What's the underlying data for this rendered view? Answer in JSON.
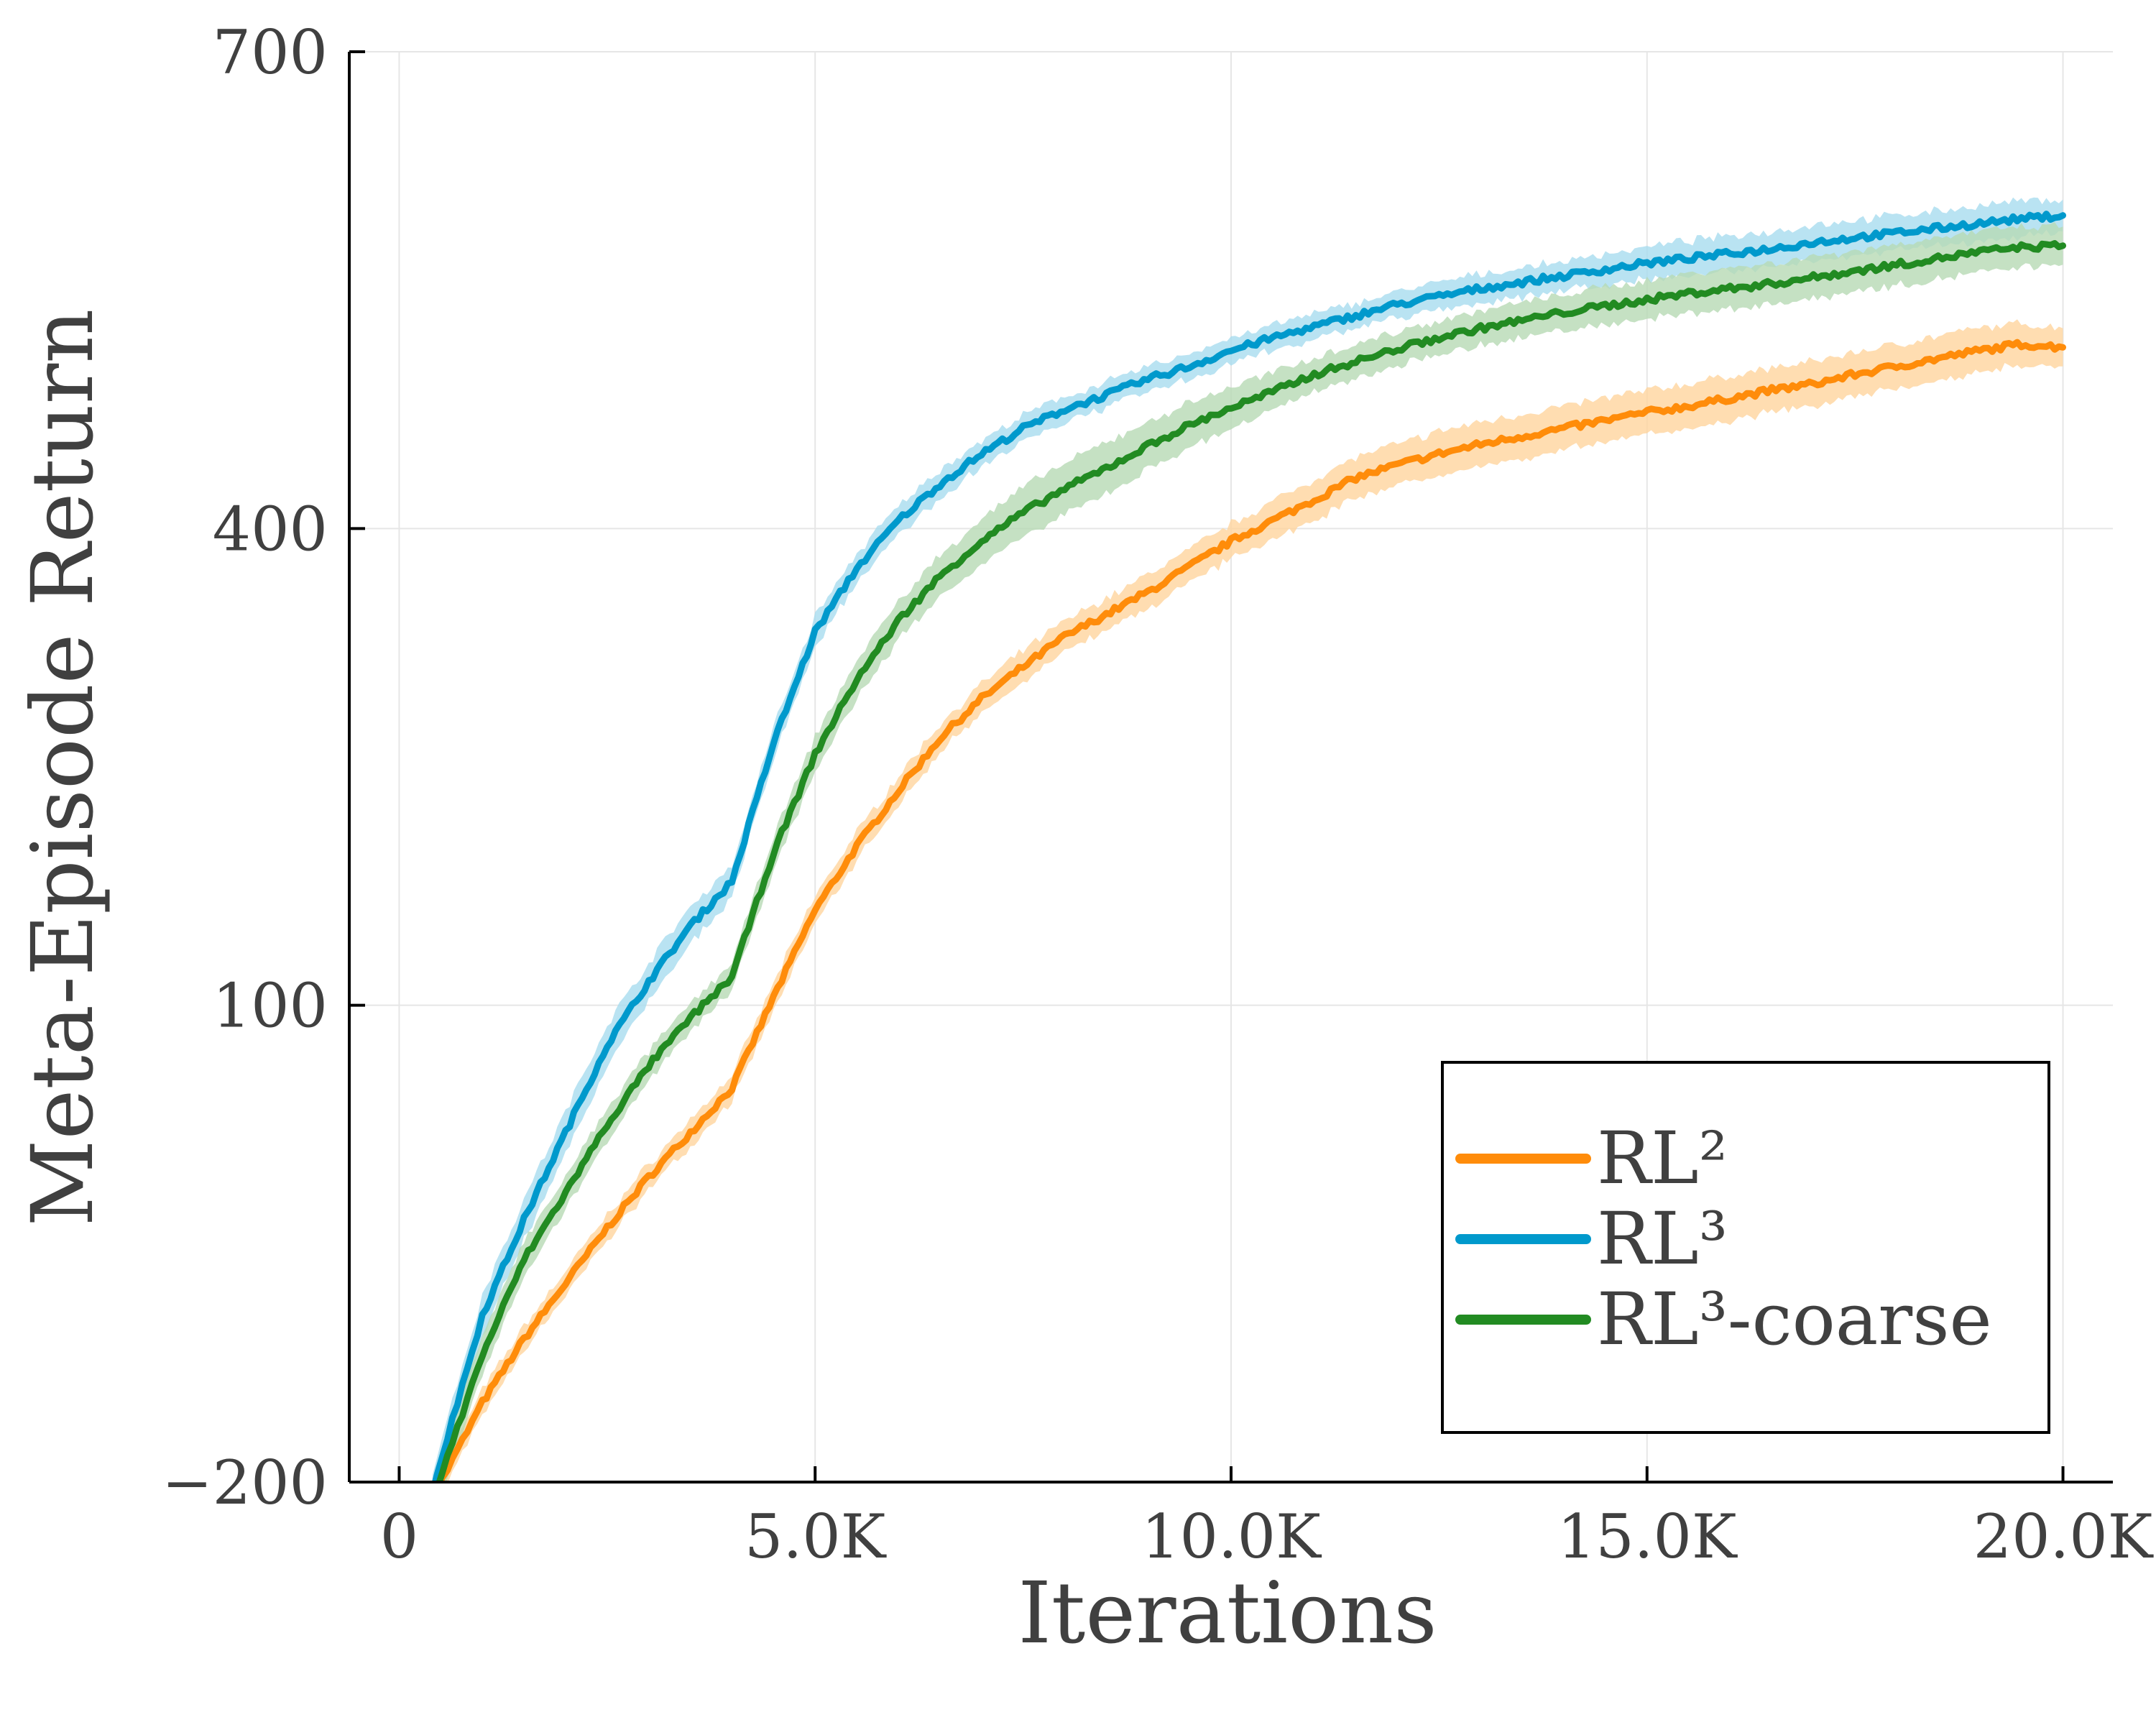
{
  "chart_data": {
    "type": "line",
    "title": "",
    "xlabel": "Iterations",
    "ylabel": "Meta-Episode Return",
    "xlim": [
      -600,
      20600
    ],
    "ylim": [
      -200,
      700
    ],
    "xticks": [
      0,
      5000,
      10000,
      15000,
      20000
    ],
    "xtick_labels": [
      "0",
      "5.0K",
      "10.0K",
      "15.0K",
      "20.0K"
    ],
    "yticks": [
      -200,
      100,
      400,
      700
    ],
    "ytick_labels": [
      "−200",
      "100",
      "400",
      "700"
    ],
    "grid": true,
    "legend_position": "bottom-right",
    "x": [
      400,
      1000,
      1500,
      2000,
      2500,
      3000,
      3500,
      4000,
      4500,
      5000,
      5500,
      6000,
      6500,
      7000,
      7500,
      8000,
      8500,
      9000,
      9500,
      10000,
      10500,
      11000,
      11500,
      12000,
      12500,
      13000,
      13500,
      14000,
      14500,
      15000,
      15500,
      16000,
      16500,
      17000,
      17500,
      18000,
      18500,
      19000,
      19500,
      20000
    ],
    "series": [
      {
        "name": "RL²",
        "color": "#ff8c0a",
        "band_color": "#ffd49e",
        "values": [
          -210,
          -150,
          -110,
          -75,
          -40,
          -8,
          20,
          48,
          105,
          160,
          200,
          235,
          268,
          293,
          313,
          332,
          346,
          360,
          376,
          392,
          405,
          418,
          432,
          440,
          447,
          453,
          458,
          463,
          468,
          473,
          477,
          482,
          487,
          491,
          497,
          502,
          507,
          512,
          516,
          514
        ],
        "band": [
          8,
          8,
          8,
          8,
          8,
          8,
          8,
          8,
          9,
          9,
          9,
          9,
          9,
          9,
          10,
          10,
          10,
          11,
          11,
          11,
          12,
          13,
          13,
          13,
          14,
          14,
          14,
          14,
          14,
          14,
          14,
          14,
          14,
          14,
          14,
          14,
          14,
          14,
          13,
          12
        ]
      },
      {
        "name": "RL³",
        "color": "#0099cc",
        "band_color": "#a8dcef",
        "values": [
          -205,
          -95,
          -35,
          20,
          75,
          115,
          150,
          178,
          265,
          335,
          375,
          405,
          428,
          447,
          463,
          475,
          484,
          494,
          502,
          512,
          520,
          527,
          534,
          541,
          546,
          551,
          555,
          559,
          563,
          567,
          570,
          573,
          576,
          580,
          583,
          586,
          589,
          592,
          595,
          597
        ],
        "band": [
          12,
          13,
          13,
          13,
          13,
          12,
          12,
          10,
          10,
          10,
          9,
          9,
          9,
          8,
          8,
          8,
          8,
          8,
          8,
          8,
          8,
          8,
          8,
          8,
          9,
          9,
          9,
          9,
          10,
          10,
          11,
          11,
          11,
          11,
          11,
          11,
          11,
          11,
          11,
          10
        ]
      },
      {
        "name": "RL³-coarse",
        "color": "#228b22",
        "band_color": "#b7d9b4",
        "values": [
          -212,
          -120,
          -60,
          -18,
          25,
          62,
          92,
          118,
          196,
          258,
          305,
          342,
          370,
          392,
          410,
          425,
          438,
          452,
          465,
          476,
          486,
          497,
          505,
          513,
          520,
          526,
          531,
          536,
          540,
          544,
          548,
          551,
          554,
          558,
          562,
          566,
          570,
          574,
          577,
          578
        ],
        "band": [
          14,
          12,
          11,
          10,
          10,
          9,
          9,
          9,
          10,
          11,
          12,
          12,
          13,
          14,
          16,
          16,
          16,
          15,
          14,
          13,
          12,
          11,
          11,
          11,
          11,
          11,
          11,
          11,
          12,
          12,
          13,
          13,
          13,
          13,
          13,
          13,
          13,
          13,
          12,
          12
        ]
      }
    ]
  }
}
